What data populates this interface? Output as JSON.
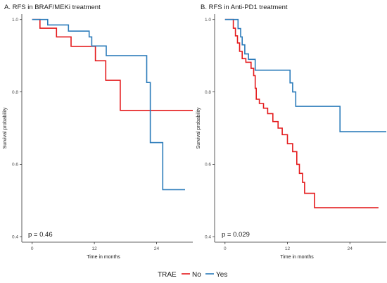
{
  "colors": {
    "No": "#e41a1c",
    "Yes": "#2b7bba",
    "axis": "#333333",
    "tick_text": "#4d4d4d"
  },
  "legend": {
    "title": "TRAE",
    "entries": [
      "No",
      "Yes"
    ],
    "placement": "bottom"
  },
  "chart_data": [
    {
      "type": "line",
      "subtype": "kaplan-meier step",
      "title": "A. RFS in BRAF/MEKi treatment",
      "xlabel": "Time in months",
      "ylabel": "Survival probability",
      "xlim": [
        -2,
        31
      ],
      "ylim": [
        0.385,
        1.015
      ],
      "xticks": [
        0,
        12,
        24
      ],
      "yticks": [
        0.4,
        0.6,
        0.8,
        1.0
      ],
      "ytick_labels": [
        "0.4",
        "0.6",
        "0.8",
        "1.0"
      ],
      "annotation": "p = 0.46",
      "series": [
        {
          "name": "No",
          "points": [
            [
              0,
              1.0
            ],
            [
              1.5,
              1.0
            ],
            [
              1.5,
              0.976
            ],
            [
              4.7,
              0.976
            ],
            [
              4.7,
              0.952
            ],
            [
              7.5,
              0.952
            ],
            [
              7.5,
              0.926
            ],
            [
              12.2,
              0.926
            ],
            [
              12.2,
              0.886
            ],
            [
              14.2,
              0.886
            ],
            [
              14.2,
              0.832
            ],
            [
              17,
              0.832
            ],
            [
              17,
              0.749
            ],
            [
              31,
              0.749
            ]
          ]
        },
        {
          "name": "Yes",
          "points": [
            [
              0,
              1.0
            ],
            [
              3,
              1.0
            ],
            [
              3,
              0.985
            ],
            [
              7,
              0.985
            ],
            [
              7,
              0.968
            ],
            [
              11,
              0.968
            ],
            [
              11,
              0.952
            ],
            [
              11.5,
              0.952
            ],
            [
              11.5,
              0.927
            ],
            [
              14.3,
              0.927
            ],
            [
              14.3,
              0.9
            ],
            [
              22.1,
              0.9
            ],
            [
              22.1,
              0.826
            ],
            [
              22.8,
              0.826
            ],
            [
              22.8,
              0.66
            ],
            [
              25.2,
              0.66
            ],
            [
              25.2,
              0.53
            ],
            [
              29.5,
              0.53
            ]
          ]
        }
      ]
    },
    {
      "type": "line",
      "subtype": "kaplan-meier step",
      "title": "B. RFS in Anti-PD1 treatment",
      "xlabel": "Time in months",
      "ylabel": "Survival probability",
      "xlim": [
        -2,
        31
      ],
      "ylim": [
        0.385,
        1.015
      ],
      "xticks": [
        0,
        12,
        24
      ],
      "yticks": [
        0.4,
        0.6,
        0.8,
        1.0
      ],
      "ytick_labels": [
        "0.4",
        "0.6",
        "0.8",
        "1.0"
      ],
      "annotation": "p = 0.029",
      "series": [
        {
          "name": "No",
          "points": [
            [
              0,
              1.0
            ],
            [
              1.6,
              1.0
            ],
            [
              1.6,
              0.976
            ],
            [
              2,
              0.976
            ],
            [
              2,
              0.955
            ],
            [
              2.4,
              0.955
            ],
            [
              2.4,
              0.935
            ],
            [
              2.8,
              0.935
            ],
            [
              2.8,
              0.912
            ],
            [
              3.3,
              0.912
            ],
            [
              3.3,
              0.892
            ],
            [
              4,
              0.892
            ],
            [
              4,
              0.882
            ],
            [
              5,
              0.882
            ],
            [
              5,
              0.865
            ],
            [
              5.5,
              0.865
            ],
            [
              5.5,
              0.845
            ],
            [
              5.8,
              0.845
            ],
            [
              5.8,
              0.81
            ],
            [
              6,
              0.81
            ],
            [
              6,
              0.78
            ],
            [
              6.6,
              0.78
            ],
            [
              6.6,
              0.768
            ],
            [
              7.4,
              0.768
            ],
            [
              7.4,
              0.755
            ],
            [
              8.2,
              0.755
            ],
            [
              8.2,
              0.74
            ],
            [
              9.2,
              0.74
            ],
            [
              9.2,
              0.718
            ],
            [
              10.2,
              0.718
            ],
            [
              10.2,
              0.7
            ],
            [
              11,
              0.7
            ],
            [
              11,
              0.682
            ],
            [
              12,
              0.682
            ],
            [
              12,
              0.657
            ],
            [
              13,
              0.657
            ],
            [
              13,
              0.635
            ],
            [
              13.8,
              0.635
            ],
            [
              13.8,
              0.6
            ],
            [
              14.3,
              0.6
            ],
            [
              14.3,
              0.575
            ],
            [
              14.9,
              0.575
            ],
            [
              14.9,
              0.55
            ],
            [
              15.3,
              0.55
            ],
            [
              15.3,
              0.52
            ],
            [
              17.2,
              0.52
            ],
            [
              17.2,
              0.48
            ],
            [
              29.5,
              0.48
            ]
          ]
        },
        {
          "name": "Yes",
          "points": [
            [
              0,
              1.0
            ],
            [
              2.5,
              1.0
            ],
            [
              2.5,
              0.975
            ],
            [
              3,
              0.975
            ],
            [
              3,
              0.952
            ],
            [
              3.3,
              0.952
            ],
            [
              3.3,
              0.93
            ],
            [
              3.8,
              0.93
            ],
            [
              3.8,
              0.905
            ],
            [
              4.5,
              0.905
            ],
            [
              4.5,
              0.89
            ],
            [
              5.8,
              0.89
            ],
            [
              5.8,
              0.86
            ],
            [
              12.5,
              0.86
            ],
            [
              12.5,
              0.825
            ],
            [
              13,
              0.825
            ],
            [
              13,
              0.8
            ],
            [
              13.6,
              0.8
            ],
            [
              13.6,
              0.76
            ],
            [
              22.1,
              0.76
            ],
            [
              22.1,
              0.69
            ],
            [
              31,
              0.69
            ]
          ]
        }
      ]
    }
  ]
}
